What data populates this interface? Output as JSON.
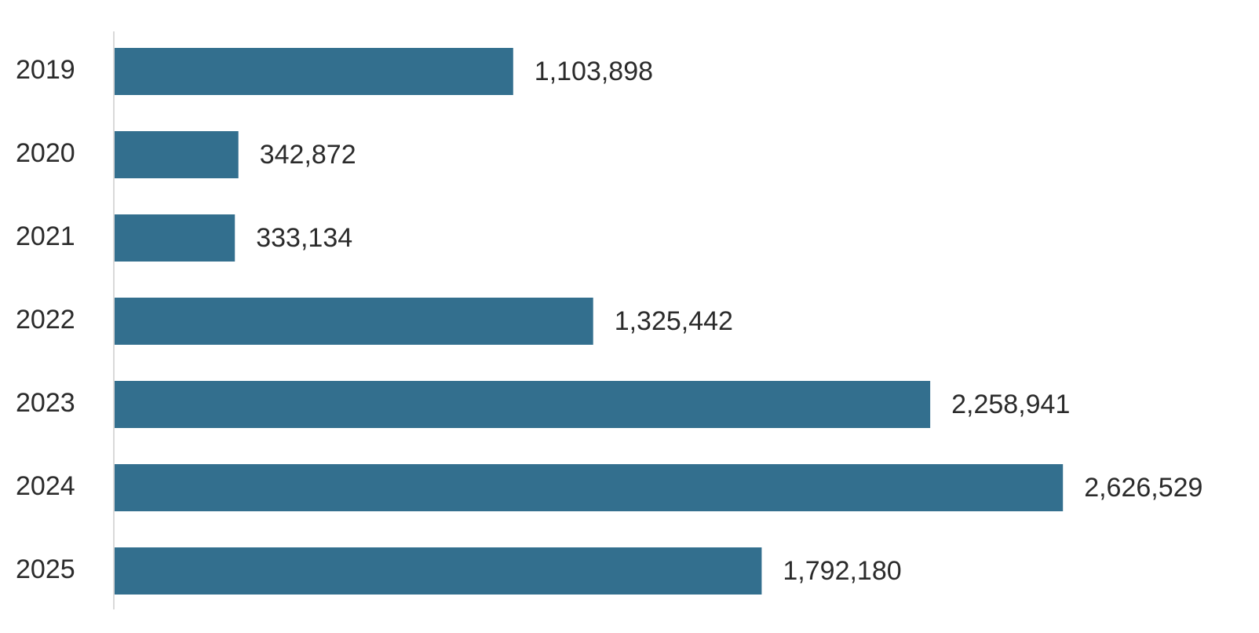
{
  "chart_data": {
    "type": "bar",
    "orientation": "horizontal",
    "categories": [
      "2019",
      "2020",
      "2021",
      "2022",
      "2023",
      "2024",
      "2025"
    ],
    "values": [
      1103898,
      342872,
      333134,
      1325442,
      2258941,
      2626529,
      1792180
    ],
    "value_labels": [
      "1,103,898",
      "342,872",
      "333,134",
      "1,325,442",
      "2,258,941",
      "2,626,529",
      "1,792,180"
    ],
    "color": "#336f8e",
    "xlim": [
      0,
      3000000
    ]
  }
}
